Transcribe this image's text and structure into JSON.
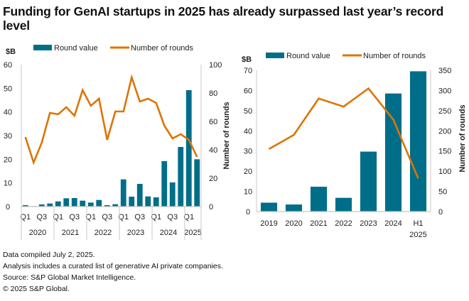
{
  "title": "Funding for GenAI startups in 2025 has already surpassed last year’s record level",
  "colors": {
    "bar": "#006e89",
    "line": "#dc7405",
    "axis": "#c8c8c8",
    "text": "#222222"
  },
  "chart_data": [
    {
      "type": "bar",
      "combo": "bar+line dual axis",
      "legend": [
        "Round value",
        "Number of rounds"
      ],
      "legend_position": "top",
      "y_left_unit": "$B",
      "y_left_range": [
        0,
        60
      ],
      "y_left_ticks": [
        "0",
        "10",
        "20",
        "30",
        "40",
        "50",
        "60"
      ],
      "y_right_label": "Number of rounds",
      "y_right_range": [
        0,
        100
      ],
      "y_right_ticks": [
        "0",
        "20",
        "40",
        "60",
        "80",
        "100"
      ],
      "quarter_tick_labels": [
        "Q1",
        "Q3",
        "Q1",
        "Q3",
        "Q1",
        "Q3",
        "Q1",
        "Q3",
        "Q1",
        "Q3",
        "Q1"
      ],
      "years": [
        "2020",
        "2021",
        "2022",
        "2023",
        "2024",
        "2025"
      ],
      "categories": [
        "Q1 2020",
        "Q2 2020",
        "Q3 2020",
        "Q4 2020",
        "Q1 2021",
        "Q2 2021",
        "Q3 2021",
        "Q4 2021",
        "Q1 2022",
        "Q2 2022",
        "Q3 2022",
        "Q4 2022",
        "Q1 2023",
        "Q2 2023",
        "Q3 2023",
        "Q4 2023",
        "Q1 2024",
        "Q2 2024",
        "Q3 2024",
        "Q4 2024",
        "Q1 2025",
        "Q2 2025"
      ],
      "series": [
        {
          "name": "Round value",
          "kind": "bar",
          "axis": "left",
          "values": [
            0.6,
            0.2,
            0.9,
            1.3,
            2.2,
            3.5,
            3.6,
            2.5,
            1.7,
            2.8,
            0.6,
            1.0,
            11.5,
            4.2,
            9.6,
            4.3,
            3.9,
            19.2,
            10.2,
            25.2,
            49.2,
            20.0
          ]
        },
        {
          "name": "Number of rounds",
          "kind": "line",
          "axis": "right",
          "values": [
            49,
            31,
            45,
            66,
            65,
            70,
            64,
            82,
            71,
            76,
            47,
            67,
            67,
            91,
            74,
            76,
            73,
            57,
            48,
            51,
            47,
            35
          ]
        }
      ],
      "grid": false
    },
    {
      "type": "bar",
      "combo": "bar+line dual axis",
      "legend": [
        "Round value",
        "Number of rounds"
      ],
      "legend_position": "top",
      "y_left_unit": "$B",
      "y_left_label": "Number of rounds",
      "y_left_range": [
        0,
        70
      ],
      "y_left_ticks": [
        "0",
        "10",
        "20",
        "30",
        "40",
        "50",
        "60",
        "70"
      ],
      "y_right_label": "Number of rounds",
      "y_right_range": [
        0,
        350
      ],
      "y_right_ticks": [
        "0",
        "50",
        "100",
        "150",
        "200",
        "250",
        "300",
        "350"
      ],
      "categories": [
        "2019",
        "2020",
        "2021",
        "2022",
        "2023",
        "2024",
        "H1 2025"
      ],
      "category_lines": [
        [
          "2019"
        ],
        [
          "2020"
        ],
        [
          "2021"
        ],
        [
          "2022"
        ],
        [
          "2023"
        ],
        [
          "2024"
        ],
        [
          "H1",
          "2025"
        ]
      ],
      "series": [
        {
          "name": "Round value",
          "kind": "bar",
          "axis": "left",
          "values": [
            4.4,
            3.5,
            12.3,
            6.8,
            29.7,
            58.5,
            69.5
          ]
        },
        {
          "name": "Number of rounds",
          "kind": "line",
          "axis": "right",
          "values": [
            155,
            190,
            280,
            260,
            305,
            228,
            82
          ]
        }
      ],
      "grid": false
    }
  ],
  "notes": [
    "Data compiled July 2, 2025.",
    "Analysis includes a curated list of generative AI private companies.",
    "Source: S&P Global Market Intelligence.",
    "© 2025 S&P Global."
  ]
}
